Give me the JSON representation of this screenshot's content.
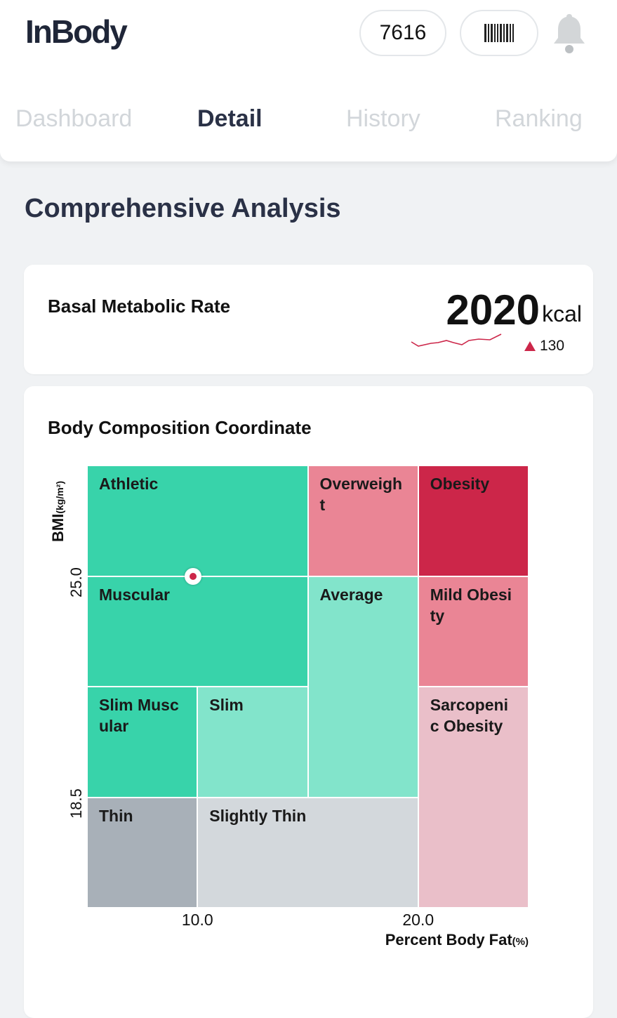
{
  "header": {
    "logo": "InBody",
    "points": "7616",
    "barcode_icon": "barcode-icon",
    "bell_icon": "bell-icon"
  },
  "tabs": [
    {
      "label": "Dashboard"
    },
    {
      "label": "Detail",
      "active": true
    },
    {
      "label": "History"
    },
    {
      "label": "Ranking"
    }
  ],
  "section_title": "Comprehensive Analysis",
  "bmr": {
    "label": "Basal Metabolic Rate",
    "value": "2020",
    "unit": "kcal",
    "delta": "130",
    "trend_color": "#cc2649"
  },
  "chart_data": {
    "type": "heatmap",
    "title": "Body Composition Coordinate",
    "ylabel": "BMI",
    "ylabel_unit": "(kg/m²)",
    "xlabel": "Percent Body Fat",
    "xlabel_unit": "(%)",
    "xlim": [
      5,
      25
    ],
    "ylim": [
      15.25,
      28.25
    ],
    "xticks": [
      "10.0",
      "20.0"
    ],
    "xtick_values": [
      10,
      20
    ],
    "yticks": [
      "25.0",
      "18.5"
    ],
    "ytick_values": [
      25,
      18.5
    ],
    "regions": [
      {
        "label": "Athletic",
        "x": [
          5,
          15
        ],
        "y": [
          25,
          28.25
        ],
        "color": "#38d3aa"
      },
      {
        "label": "Overweight",
        "x": [
          15,
          20
        ],
        "y": [
          25,
          28.25
        ],
        "color": "#ea8595"
      },
      {
        "label": "Obesity",
        "x": [
          20,
          25
        ],
        "y": [
          25,
          28.25
        ],
        "color": "#cc2649"
      },
      {
        "label": "Muscular",
        "x": [
          5,
          15
        ],
        "y": [
          21.75,
          25
        ],
        "color": "#38d3aa"
      },
      {
        "label": "Average",
        "x": [
          15,
          20
        ],
        "y": [
          18.5,
          25
        ],
        "color": "#82e4cb"
      },
      {
        "label": "Mild Obesity",
        "x": [
          20,
          25
        ],
        "y": [
          21.75,
          25
        ],
        "color": "#ea8595"
      },
      {
        "label": "Slim Muscular",
        "x": [
          5,
          10
        ],
        "y": [
          18.5,
          21.75
        ],
        "color": "#38d3aa"
      },
      {
        "label": "Slim",
        "x": [
          10,
          15
        ],
        "y": [
          18.5,
          21.75
        ],
        "color": "#82e4cb"
      },
      {
        "label": "Sarcopenic Obesity",
        "x": [
          20,
          25
        ],
        "y": [
          15.25,
          21.75
        ],
        "color": "#eabfc9"
      },
      {
        "label": "Thin",
        "x": [
          5,
          10
        ],
        "y": [
          15.25,
          18.5
        ],
        "color": "#a8b0b8"
      },
      {
        "label": "Slightly Thin",
        "x": [
          10,
          20
        ],
        "y": [
          15.25,
          18.5
        ],
        "color": "#d3d8dc"
      }
    ],
    "point": {
      "x": 9.8,
      "y": 25.0
    }
  }
}
